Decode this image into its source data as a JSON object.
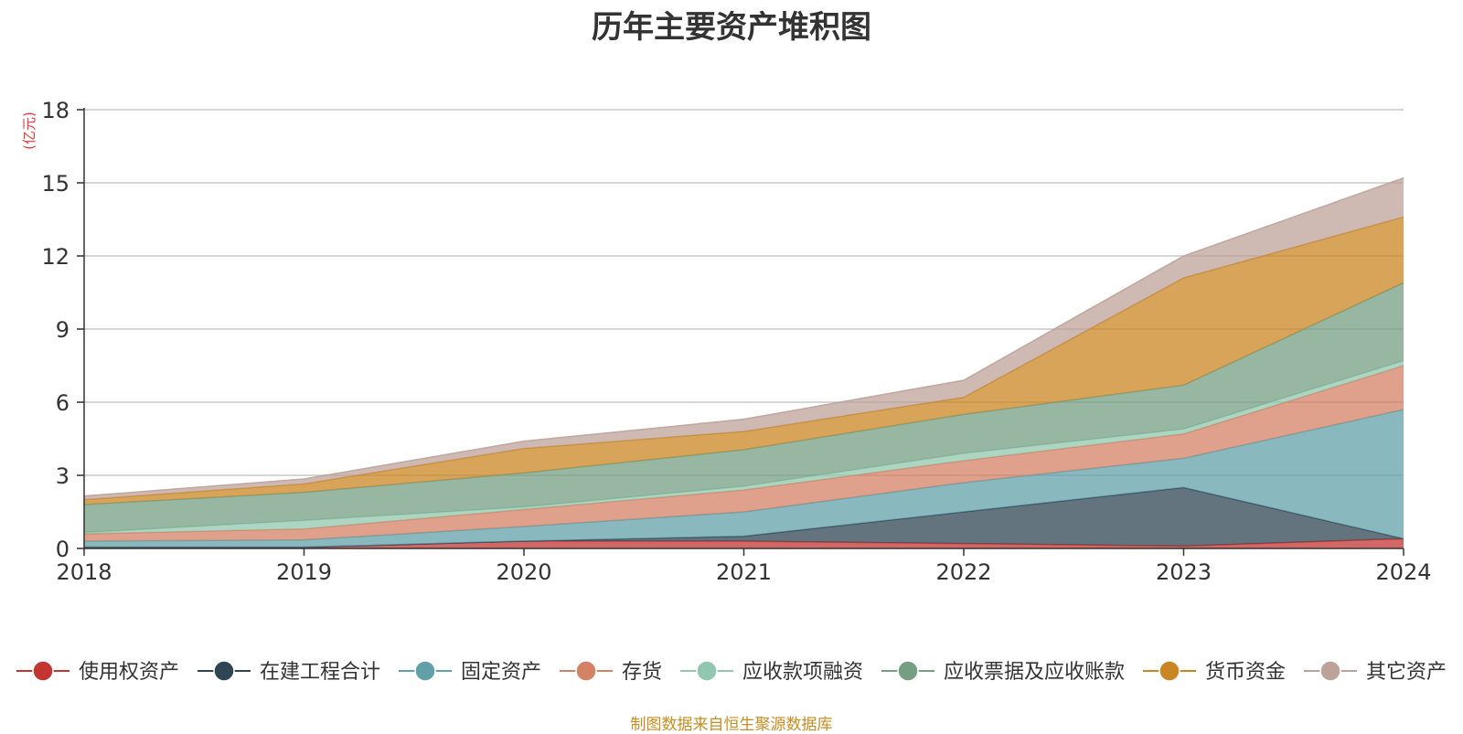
{
  "chart_data": {
    "type": "area",
    "title": "历年主要资产堆积图",
    "ylabel": "(亿元)",
    "xlabel": "",
    "categories": [
      "2018",
      "2019",
      "2020",
      "2021",
      "2022",
      "2023",
      "2024"
    ],
    "ylim": [
      0,
      18
    ],
    "yticks": [
      "0",
      "3",
      "6",
      "9",
      "12",
      "15",
      "18"
    ],
    "stacked": true,
    "grid": true,
    "legend_position": "bottom",
    "series": [
      {
        "name": "使用权资产",
        "color": "#c23531",
        "values": [
          0.05,
          0.05,
          0.3,
          0.3,
          0.2,
          0.1,
          0.4
        ]
      },
      {
        "name": "在建工程合计",
        "color": "#2f4554",
        "values": [
          0.0,
          0.0,
          0.0,
          0.2,
          1.3,
          2.4,
          0.0
        ]
      },
      {
        "name": "固定资产",
        "color": "#61a0a8",
        "values": [
          0.25,
          0.3,
          0.6,
          1.0,
          1.2,
          1.2,
          5.3
        ]
      },
      {
        "name": "存货",
        "color": "#d48265",
        "values": [
          0.3,
          0.45,
          0.7,
          0.9,
          0.9,
          1.0,
          1.8
        ]
      },
      {
        "name": "应收款项融资",
        "color": "#91c7ae",
        "values": [
          0.05,
          0.35,
          0.1,
          0.15,
          0.3,
          0.2,
          0.2
        ]
      },
      {
        "name": "应收票据及应收账款",
        "color": "#749f83",
        "values": [
          1.15,
          1.15,
          1.4,
          1.5,
          1.6,
          1.8,
          3.2
        ]
      },
      {
        "name": "货币资金",
        "color": "#ca8622",
        "values": [
          0.2,
          0.35,
          1.0,
          0.75,
          0.7,
          4.4,
          2.7
        ]
      },
      {
        "name": "其它资产",
        "color": "#bda29a",
        "values": [
          0.15,
          0.2,
          0.3,
          0.5,
          0.7,
          0.9,
          1.6
        ]
      }
    ]
  },
  "source_note": "制图数据来自恒生聚源数据库"
}
